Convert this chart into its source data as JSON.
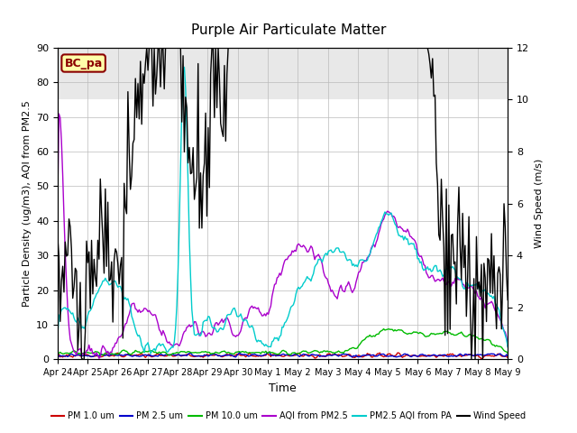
{
  "title": "Purple Air Particulate Matter",
  "ylabel_left": "Particle Density (ug/m3), AQI from PM2.5",
  "ylabel_right": "Wind Speed (m/s)",
  "xlabel": "Time",
  "ylim_left": [
    0,
    90
  ],
  "ylim_right": [
    0,
    12
  ],
  "yticks_left": [
    0,
    10,
    20,
    30,
    40,
    50,
    60,
    70,
    80,
    90
  ],
  "yticks_right": [
    0,
    2,
    4,
    6,
    8,
    10,
    12
  ],
  "annotation_text": "BC_pa",
  "annotation_bg": "#ffffaa",
  "annotation_border": "#8B0000",
  "annotation_text_color": "#8B0000",
  "x_tick_labels": [
    "Apr 24",
    "Apr 25",
    "Apr 26",
    "Apr 27",
    "Apr 28",
    "Apr 29",
    "Apr 30",
    "May 1",
    "May 2",
    "May 3",
    "May 4",
    "May 5",
    "May 6",
    "May 7",
    "May 8",
    "May 9"
  ],
  "legend_entries": [
    {
      "label": "PM 1.0 um",
      "color": "#cc0000",
      "lw": 1.0
    },
    {
      "label": "PM 2.5 um",
      "color": "#0000cc",
      "lw": 1.0
    },
    {
      "label": "PM 10.0 um",
      "color": "#00bb00",
      "lw": 1.0
    },
    {
      "label": "AQI from PM2.5",
      "color": "#aa00cc",
      "lw": 1.0
    },
    {
      "label": "PM2.5 AQI from PA",
      "color": "#00cccc",
      "lw": 1.0
    },
    {
      "label": "Wind Speed",
      "color": "#000000",
      "lw": 1.0
    }
  ],
  "seed": 42,
  "n_points": 360,
  "figsize": [
    6.4,
    4.8
  ],
  "dpi": 100
}
